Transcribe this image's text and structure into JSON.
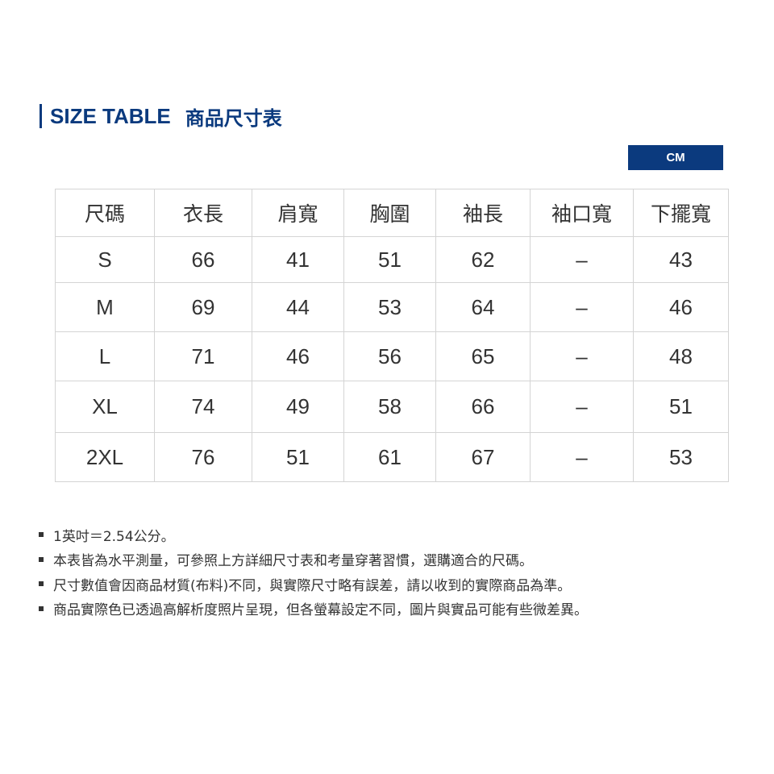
{
  "title": {
    "en": "SIZE TABLE",
    "zh": "商品尺寸表"
  },
  "unit": "CM",
  "colors": {
    "accent": "#0b3a7e"
  },
  "table": {
    "headers": [
      "尺碼",
      "衣長",
      "肩寬",
      "胸圍",
      "袖長",
      "袖口寬",
      "下擺寬"
    ],
    "rows": [
      [
        "S",
        "66",
        "41",
        "51",
        "62",
        "–",
        "43"
      ],
      [
        "M",
        "69",
        "44",
        "53",
        "64",
        "–",
        "46"
      ],
      [
        "L",
        "71",
        "46",
        "56",
        "65",
        "–",
        "48"
      ],
      [
        "XL",
        "74",
        "49",
        "58",
        "66",
        "–",
        "51"
      ],
      [
        "2XL",
        "76",
        "51",
        "61",
        "67",
        "–",
        "53"
      ]
    ]
  },
  "notes": [
    "1英吋＝2.54公分。",
    "本表皆為水平測量，可參照上方詳細尺寸表和考量穿著習慣，選購適合的尺碼。",
    "尺寸數值會因商品材質(布料)不同，與實際尺寸略有誤差，請以收到的實際商品為準。",
    "商品實際色已透過高解析度照片呈現，但各螢幕設定不同，圖片與實品可能有些微差異。"
  ]
}
